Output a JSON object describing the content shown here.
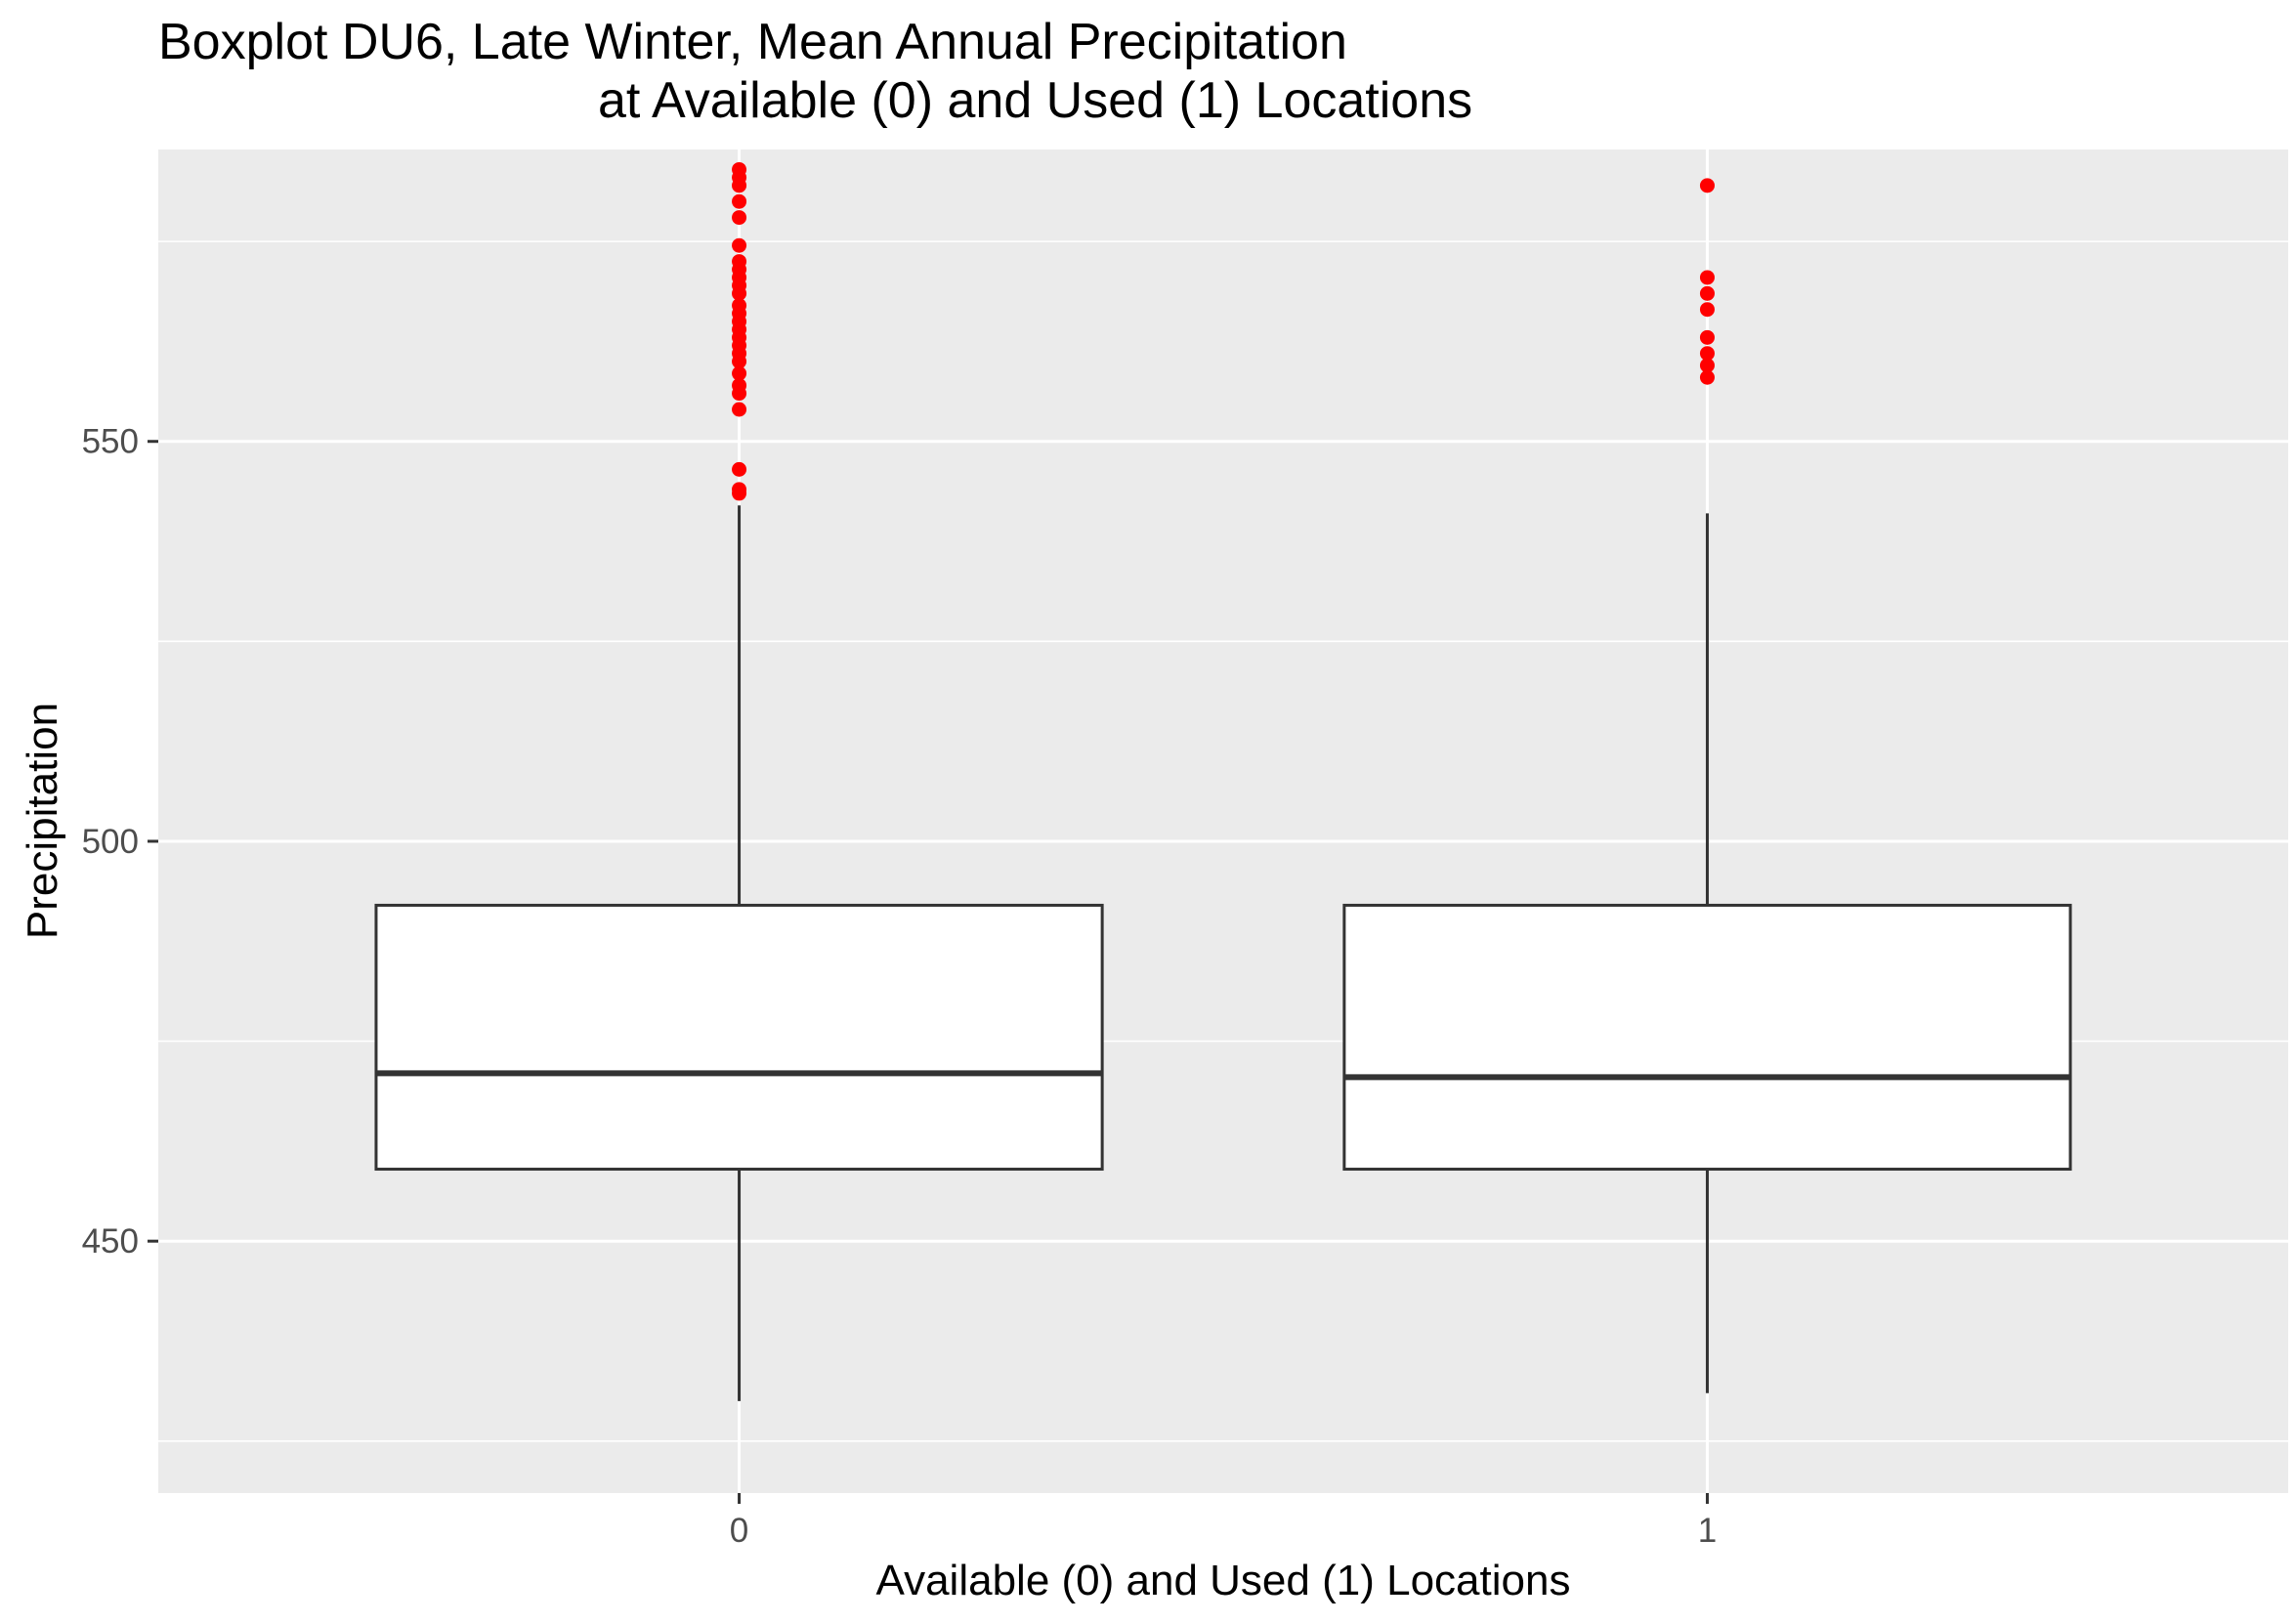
{
  "chart_data": {
    "type": "boxplot",
    "title_line1": "Boxplot DU6, Late Winter, Mean Annual Precipitation",
    "title_line2": "at Available (0) and Used (1) Locations",
    "xlabel": "Available (0) and Used (1) Locations",
    "ylabel": "Precipitation",
    "ylim": [
      418.5,
      586.5
    ],
    "y_ticks": [
      450,
      500,
      550
    ],
    "y_minor_ticks": [
      425,
      475,
      525,
      575
    ],
    "categories": [
      "0",
      "1"
    ],
    "grid": true,
    "background": "#ebebeb",
    "outlier_color": "#ff0000",
    "boxes": [
      {
        "category": "0",
        "min": 430,
        "q1": 459,
        "median": 471,
        "q3": 492,
        "max": 542,
        "outliers": [
          543.5,
          544,
          546.5,
          554,
          556,
          557,
          558.5,
          560,
          561,
          562,
          563,
          564,
          565,
          566,
          567,
          568.5,
          569.5,
          570.5,
          571.5,
          572.5,
          574.5,
          578,
          580,
          582,
          583,
          584
        ]
      },
      {
        "category": "1",
        "min": 431,
        "q1": 459,
        "median": 470.5,
        "q3": 492,
        "max": 541,
        "outliers": [
          558,
          559.5,
          561,
          563,
          566.5,
          568.5,
          570.5,
          582
        ]
      }
    ]
  }
}
